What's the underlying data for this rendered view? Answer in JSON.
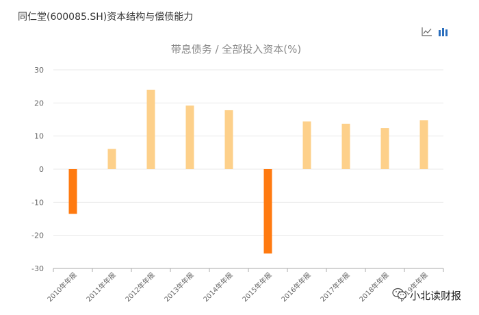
{
  "page": {
    "title": "同仁堂(600085.SH)资本结构与偿债能力"
  },
  "toolbar": {
    "line_icon": "line-chart-icon",
    "bar_icon": "bar-chart-icon"
  },
  "watermark": {
    "text": "小北读财报",
    "icon": "wechat-icon"
  },
  "colors": {
    "negative_bar": "#ff7a10",
    "positive_bar": "#fdd08a",
    "grid": "#e8e8e8",
    "axis": "#aaaaaa",
    "title": "#888888",
    "tick": "#666666"
  },
  "chart_data": {
    "type": "bar",
    "title": "带息债务 / 全部投入资本(%)",
    "xlabel": "",
    "ylabel": "",
    "categories": [
      "2010年年报",
      "2011年年报",
      "2012年年报",
      "2013年年报",
      "2014年年报",
      "2015年年报",
      "2016年年报",
      "2017年年报",
      "2018年年报",
      "2019年年报"
    ],
    "values": [
      -13.5,
      6.1,
      24.0,
      19.2,
      17.8,
      -25.5,
      14.4,
      13.7,
      12.4,
      14.8
    ],
    "ylim": [
      -30,
      30
    ],
    "yticks": [
      "30",
      "20",
      "10",
      "0",
      "-10",
      "-20",
      "-30"
    ],
    "grid": true,
    "legend": "none"
  }
}
